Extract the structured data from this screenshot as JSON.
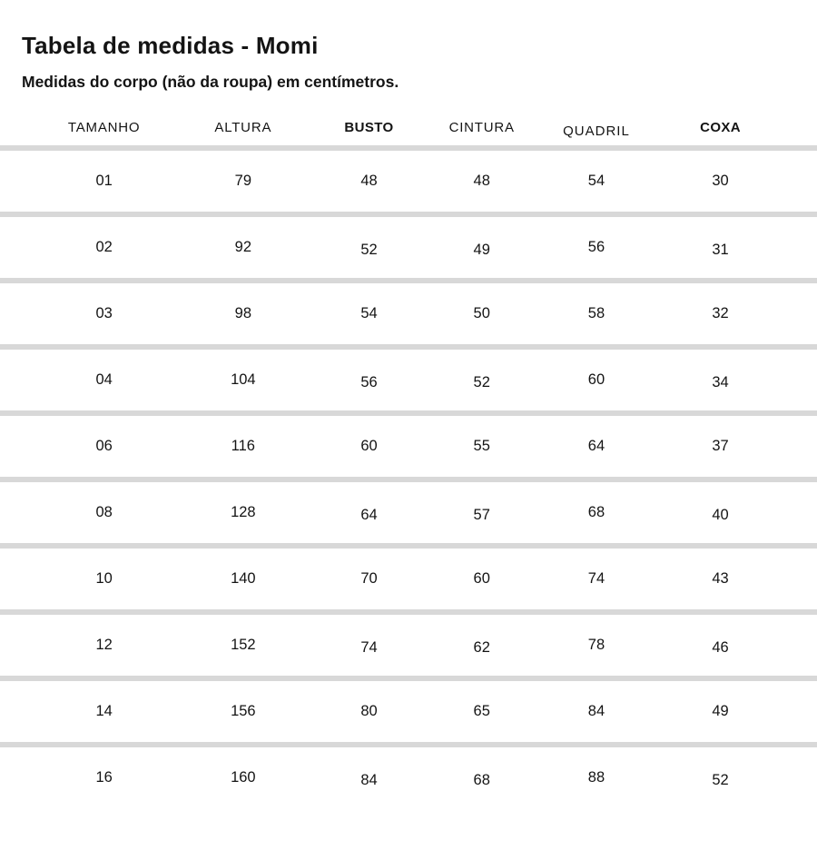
{
  "title": "Tabela de medidas - Momi",
  "subtitle": "Medidas do corpo (não da roupa) em centímetros.",
  "chart_data": {
    "type": "table",
    "title": "Tabela de medidas - Momi",
    "subtitle": "Medidas do corpo (não da roupa) em centímetros.",
    "columns": [
      "TAMANHO",
      "ALTURA",
      "BUSTO",
      "CINTURA",
      "QUADRIL",
      "COXA"
    ],
    "rows": [
      [
        "01",
        "79",
        "48",
        "48",
        "54",
        "30"
      ],
      [
        "02",
        "92",
        "52",
        "49",
        "56",
        "31"
      ],
      [
        "03",
        "98",
        "54",
        "50",
        "58",
        "32"
      ],
      [
        "04",
        "104",
        "56",
        "52",
        "60",
        "34"
      ],
      [
        "06",
        "116",
        "60",
        "55",
        "64",
        "37"
      ],
      [
        "08",
        "128",
        "64",
        "57",
        "68",
        "40"
      ],
      [
        "10",
        "140",
        "70",
        "60",
        "74",
        "43"
      ],
      [
        "12",
        "152",
        "74",
        "62",
        "78",
        "46"
      ],
      [
        "14",
        "156",
        "80",
        "65",
        "84",
        "49"
      ],
      [
        "16",
        "160",
        "84",
        "68",
        "88",
        "52"
      ]
    ]
  },
  "colors": {
    "background": "#ffffff",
    "text": "#141414",
    "divider": "#d8d8d8"
  }
}
